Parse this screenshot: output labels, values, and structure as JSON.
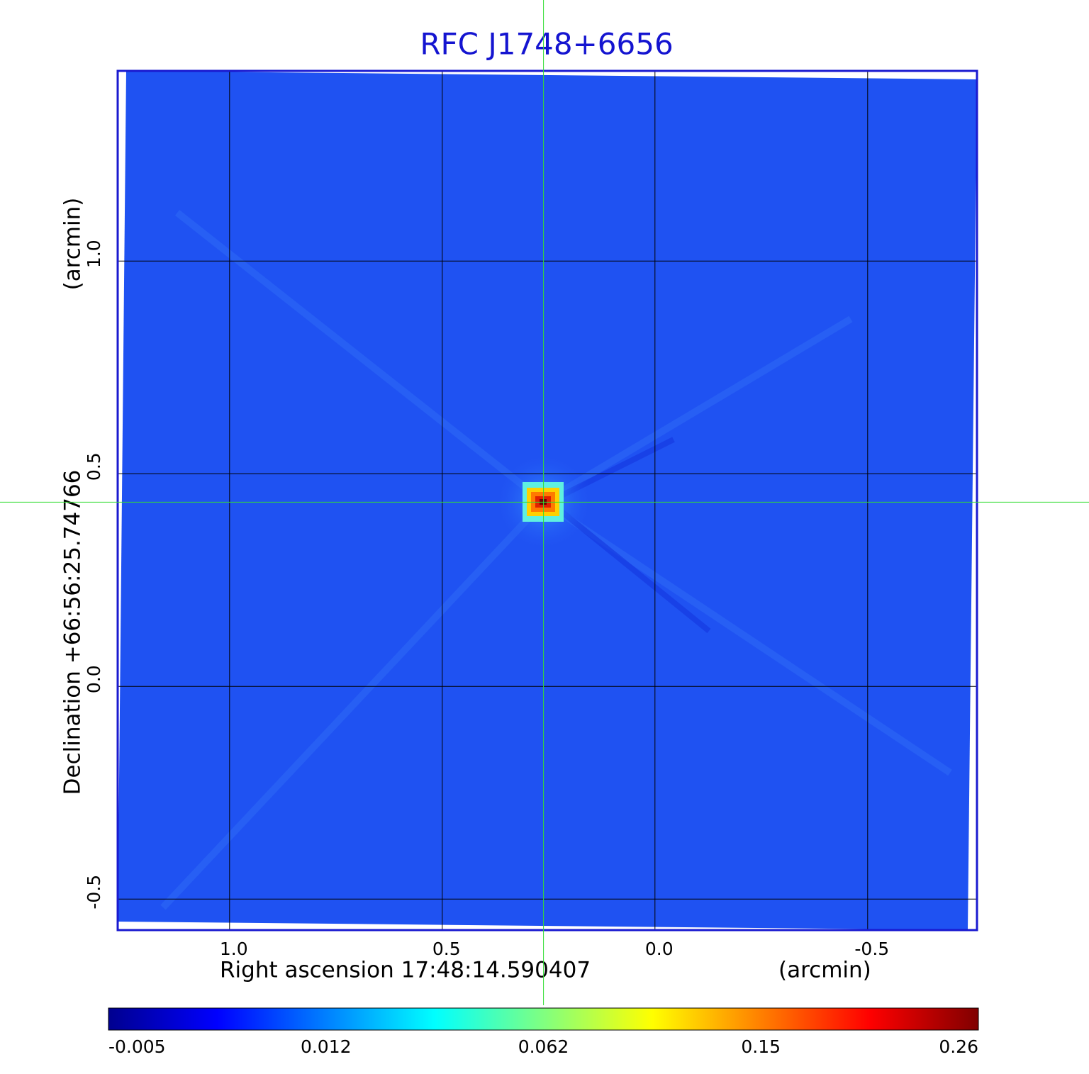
{
  "chart_data": {
    "type": "image",
    "title": "RFC J1748+6656",
    "x_label": "Right ascension  17:48:14.590407",
    "x_unit": "(arcmin)",
    "y_label": "Declination  +66:56:25.74766",
    "y_unit": "(arcmin)",
    "xlim": [
      1.263,
      -0.757
    ],
    "ylim": [
      -0.573,
      1.447
    ],
    "xticks": [
      {
        "value": 1,
        "label": "1.0"
      },
      0.5,
      {
        "value": 0,
        "label": "0.0"
      },
      -0.5
    ],
    "yticks": [
      -0.5,
      {
        "value": 0,
        "label": "0.0"
      },
      0.5,
      {
        "value": 1,
        "label": "1.0"
      }
    ],
    "grid": true,
    "crosshair": [
      0.262,
      0.433
    ],
    "colormap": "jet",
    "colorbar_ticks": [
      -0.005,
      0.012,
      0.062,
      0.15,
      0.26
    ]
  }
}
